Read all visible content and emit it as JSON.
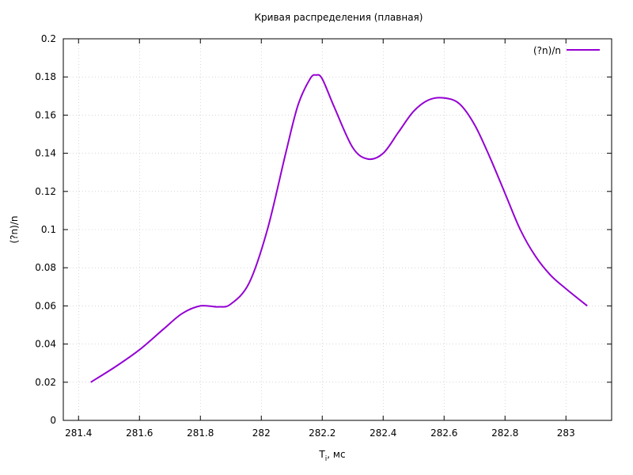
{
  "chart_data": {
    "type": "line",
    "title": "Кривая распределения (плавная)",
    "xlabel_main": "T",
    "xlabel_sub": "i",
    "xlabel_rest": ", мс",
    "ylabel": "(?n)/n",
    "xlim": [
      281.35,
      283.15
    ],
    "ylim": [
      0,
      0.2
    ],
    "xticks": [
      281.4,
      281.6,
      281.8,
      282,
      282.2,
      282.4,
      282.6,
      282.8,
      283
    ],
    "xtick_labels": [
      "281.4",
      "281.6",
      "281.8",
      "282",
      "282.2",
      "282.4",
      "282.6",
      "282.8",
      "283"
    ],
    "yticks": [
      0,
      0.02,
      0.04,
      0.06,
      0.08,
      0.1,
      0.12,
      0.14,
      0.16,
      0.18,
      0.2
    ],
    "ytick_labels": [
      "0",
      "0.02",
      "0.04",
      "0.06",
      "0.08",
      "0.1",
      "0.12",
      "0.14",
      "0.16",
      "0.18",
      "0.2"
    ],
    "grid": true,
    "legend_position": "top-right",
    "series": [
      {
        "name": "(?n)/n",
        "color": "#9400d3",
        "x": [
          281.44,
          281.52,
          281.6,
          281.68,
          281.74,
          281.8,
          281.86,
          281.9,
          281.96,
          282.02,
          282.08,
          282.12,
          282.16,
          282.18,
          282.2,
          282.24,
          282.3,
          282.35,
          282.4,
          282.45,
          282.5,
          282.55,
          282.6,
          282.65,
          282.7,
          282.75,
          282.8,
          282.85,
          282.9,
          282.95,
          283.0,
          283.07
        ],
        "y": [
          0.02,
          0.028,
          0.037,
          0.048,
          0.056,
          0.06,
          0.0595,
          0.061,
          0.072,
          0.1,
          0.14,
          0.165,
          0.179,
          0.181,
          0.179,
          0.164,
          0.143,
          0.137,
          0.14,
          0.151,
          0.162,
          0.168,
          0.169,
          0.166,
          0.155,
          0.138,
          0.119,
          0.1,
          0.086,
          0.076,
          0.069,
          0.06
        ]
      }
    ]
  }
}
